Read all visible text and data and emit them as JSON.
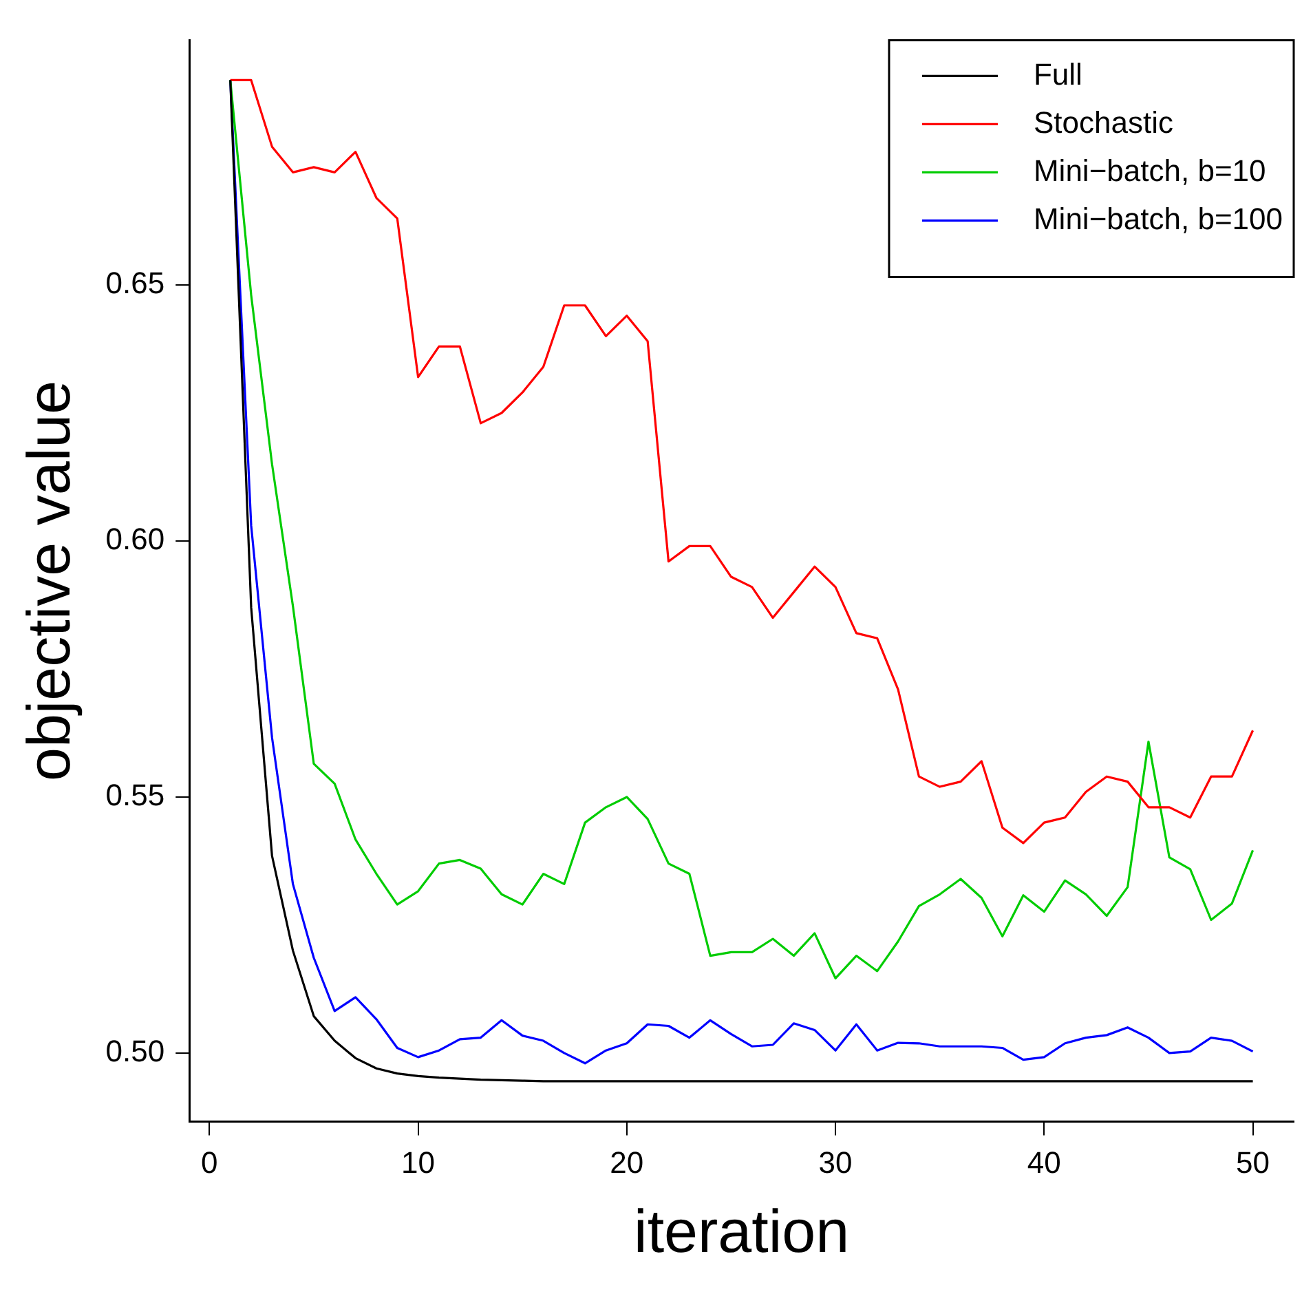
{
  "chart_data": {
    "type": "line",
    "xlabel": "iteration",
    "ylabel": "objective value",
    "x": [
      1,
      2,
      3,
      4,
      5,
      6,
      7,
      8,
      9,
      10,
      11,
      12,
      13,
      14,
      15,
      16,
      17,
      18,
      19,
      20,
      21,
      22,
      23,
      24,
      25,
      26,
      27,
      28,
      29,
      30,
      31,
      32,
      33,
      34,
      35,
      36,
      37,
      38,
      39,
      40,
      41,
      42,
      43,
      44,
      45,
      46,
      47,
      48,
      49,
      50
    ],
    "series": [
      {
        "name": "Full",
        "color": "#000000",
        "values": [
          0.69,
          0.587,
          0.5385,
          0.52,
          0.5072,
          0.5024,
          0.499,
          0.497,
          0.496,
          0.4955,
          0.4952,
          0.495,
          0.4948,
          0.4947,
          0.4946,
          0.4945,
          0.4945,
          0.4945,
          0.4945,
          0.4945,
          0.4945,
          0.4945,
          0.4945,
          0.4945,
          0.4945,
          0.4945,
          0.4945,
          0.4945,
          0.4945,
          0.4945,
          0.4945,
          0.4945,
          0.4945,
          0.4945,
          0.4945,
          0.4945,
          0.4945,
          0.4945,
          0.4945,
          0.4945,
          0.4945,
          0.4945,
          0.4945,
          0.4945,
          0.4945,
          0.4945,
          0.4945,
          0.4945,
          0.4945,
          0.4945
        ]
      },
      {
        "name": "Stochastic",
        "color": "#ff0000",
        "values": [
          0.69,
          0.69,
          0.677,
          0.672,
          0.673,
          0.672,
          0.676,
          0.667,
          0.663,
          0.632,
          0.638,
          0.638,
          0.623,
          0.625,
          0.629,
          0.634,
          0.646,
          0.646,
          0.64,
          0.644,
          0.639,
          0.596,
          0.599,
          0.599,
          0.593,
          0.591,
          0.585,
          0.59,
          0.595,
          0.591,
          0.582,
          0.581,
          0.571,
          0.554,
          0.552,
          0.553,
          0.557,
          0.544,
          0.541,
          0.545,
          0.546,
          0.551,
          0.554,
          0.553,
          0.548,
          0.548,
          0.546,
          0.554,
          0.554,
          0.563
        ]
      },
      {
        "name": "Mini−batch, b=10",
        "color": "#00cc00",
        "values": [
          0.69,
          0.648,
          0.615,
          0.5873,
          0.5565,
          0.5526,
          0.5417,
          0.535,
          0.529,
          0.5316,
          0.537,
          0.5377,
          0.536,
          0.531,
          0.529,
          0.535,
          0.533,
          0.545,
          0.548,
          0.55,
          0.5457,
          0.537,
          0.535,
          0.519,
          0.5197,
          0.5197,
          0.5223,
          0.519,
          0.5234,
          0.5146,
          0.519,
          0.516,
          0.5218,
          0.5287,
          0.531,
          0.534,
          0.5303,
          0.5228,
          0.5308,
          0.5276,
          0.5337,
          0.531,
          0.5268,
          0.5324,
          0.5608,
          0.5382,
          0.5359,
          0.526,
          0.5292,
          0.5396
        ]
      },
      {
        "name": "Mini−batch, b=100",
        "color": "#0000ff",
        "values": [
          0.69,
          0.603,
          0.5616,
          0.533,
          0.5186,
          0.5082,
          0.5109,
          0.5066,
          0.501,
          0.4992,
          0.5005,
          0.5027,
          0.503,
          0.5064,
          0.5034,
          0.5024,
          0.5,
          0.498,
          0.5005,
          0.5019,
          0.5056,
          0.5053,
          0.503,
          0.5064,
          0.5037,
          0.5013,
          0.5016,
          0.5058,
          0.5045,
          0.5005,
          0.5056,
          0.5005,
          0.502,
          0.5019,
          0.5013,
          0.5013,
          0.5013,
          0.501,
          0.4987,
          0.4992,
          0.5019,
          0.503,
          0.5035,
          0.505,
          0.503,
          0.5,
          0.5003,
          0.503,
          0.5024,
          0.5003
        ]
      }
    ],
    "xlim": [
      -0.96,
      51.96
    ],
    "xticks": [
      0,
      10,
      20,
      30,
      40,
      50
    ],
    "ylim": [
      0.4866,
      0.6978
    ],
    "yticks": [
      {
        "value": 0.5,
        "label": "0.50"
      },
      0.55,
      {
        "value": 0.6,
        "label": "0.60"
      },
      0.65
    ],
    "grid": false,
    "legend": "top right",
    "marker": "none",
    "line_style": "solid"
  }
}
